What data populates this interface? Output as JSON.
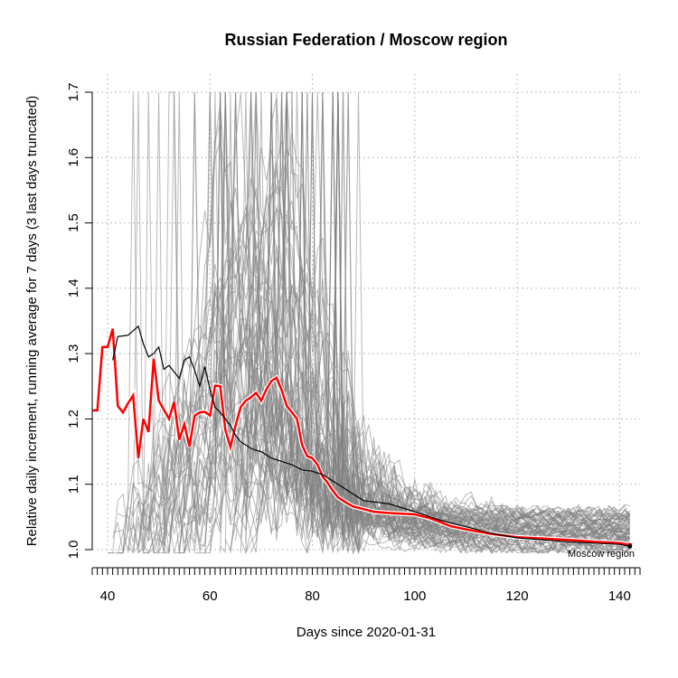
{
  "chart_data": {
    "type": "line",
    "title": "Russian Federation / Moscow region",
    "xlabel": "Days since 2020-01-31",
    "ylabel": "Relative daily increment, running average for 7 days (3 last days truncated)",
    "xlim": [
      37,
      144
    ],
    "ylim": [
      1.0,
      1.7
    ],
    "x_ticks": [
      40,
      60,
      80,
      100,
      120,
      140
    ],
    "y_ticks": [
      1.0,
      1.1,
      1.2,
      1.3,
      1.4,
      1.5,
      1.6,
      1.7
    ],
    "grid": true,
    "annotation": "Moscow region",
    "colors": {
      "highlight": "#ff0000",
      "national": "#000000",
      "regions": "#808080",
      "grid": "#bebebe"
    },
    "series": [
      {
        "name": "",
        "role": "highlight",
        "x": [
          37,
          38,
          39,
          40,
          41,
          42,
          43,
          44,
          45,
          46,
          47,
          48,
          49,
          50,
          51,
          52,
          53,
          54,
          55,
          56,
          57,
          58,
          59,
          60,
          61,
          62,
          63,
          64,
          65,
          66,
          67,
          68,
          69,
          70,
          71,
          72,
          73,
          74,
          75,
          76,
          77,
          78,
          79,
          80,
          81,
          82,
          83,
          84,
          85,
          86,
          87,
          88,
          90,
          92,
          95,
          100,
          103,
          105,
          107,
          110,
          115,
          120,
          125,
          130,
          135,
          140,
          142
        ],
        "y": [
          1.213,
          1.213,
          1.31,
          1.31,
          1.338,
          1.22,
          1.21,
          1.224,
          1.236,
          1.14,
          1.2,
          1.18,
          1.292,
          1.228,
          1.214,
          1.2,
          1.226,
          1.168,
          1.192,
          1.158,
          1.205,
          1.21,
          1.211,
          1.205,
          1.251,
          1.25,
          1.183,
          1.157,
          1.19,
          1.218,
          1.228,
          1.233,
          1.24,
          1.228,
          1.245,
          1.258,
          1.263,
          1.244,
          1.22,
          1.21,
          1.2,
          1.16,
          1.143,
          1.14,
          1.13,
          1.112,
          1.102,
          1.09,
          1.08,
          1.075,
          1.07,
          1.066,
          1.062,
          1.058,
          1.056,
          1.054,
          1.048,
          1.042,
          1.036,
          1.031,
          1.024,
          1.019,
          1.017,
          1.015,
          1.012,
          1.01,
          1.007
        ]
      },
      {
        "name": "",
        "role": "national",
        "x": [
          41,
          42,
          44,
          46,
          47,
          48,
          49,
          50,
          51,
          52,
          53,
          54,
          55,
          56,
          57,
          58,
          59,
          60,
          61,
          62,
          63,
          64,
          65,
          66,
          67,
          68,
          69,
          70,
          72,
          74,
          76,
          78,
          80,
          82,
          84,
          86,
          88,
          90,
          95,
          100,
          105,
          110,
          115,
          120,
          125,
          130,
          135,
          140,
          142
        ],
        "y": [
          1.29,
          1.326,
          1.328,
          1.342,
          1.315,
          1.295,
          1.3,
          1.31,
          1.276,
          1.282,
          1.272,
          1.262,
          1.29,
          1.295,
          1.275,
          1.25,
          1.28,
          1.245,
          1.218,
          1.21,
          1.2,
          1.19,
          1.175,
          1.165,
          1.16,
          1.155,
          1.152,
          1.15,
          1.14,
          1.135,
          1.13,
          1.122,
          1.12,
          1.115,
          1.105,
          1.095,
          1.085,
          1.075,
          1.07,
          1.058,
          1.045,
          1.035,
          1.025,
          1.018,
          1.015,
          1.012,
          1.01,
          1.008,
          1.005
        ]
      }
    ]
  }
}
